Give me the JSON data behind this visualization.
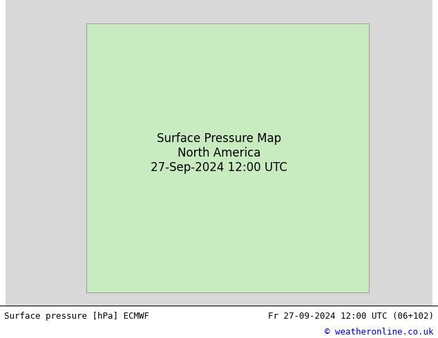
{
  "title_left": "Surface pressure [hPa] ECMWF",
  "title_right": "Fr 27-09-2024 12:00 UTC (06+102)",
  "copyright": "© weatheronline.co.uk",
  "background_color": "#d8d8d8",
  "land_color": "#c8ecc0",
  "ocean_color": "#d8d8d8",
  "label_fontsize": 7,
  "title_fontsize": 9,
  "copyright_fontsize": 9,
  "copyright_color": "#0000cc",
  "figsize": [
    6.34,
    4.9
  ],
  "dpi": 100,
  "contour_linewidth_blue": 1.0,
  "contour_linewidth_red": 1.0,
  "contour_linewidth_black": 1.8
}
